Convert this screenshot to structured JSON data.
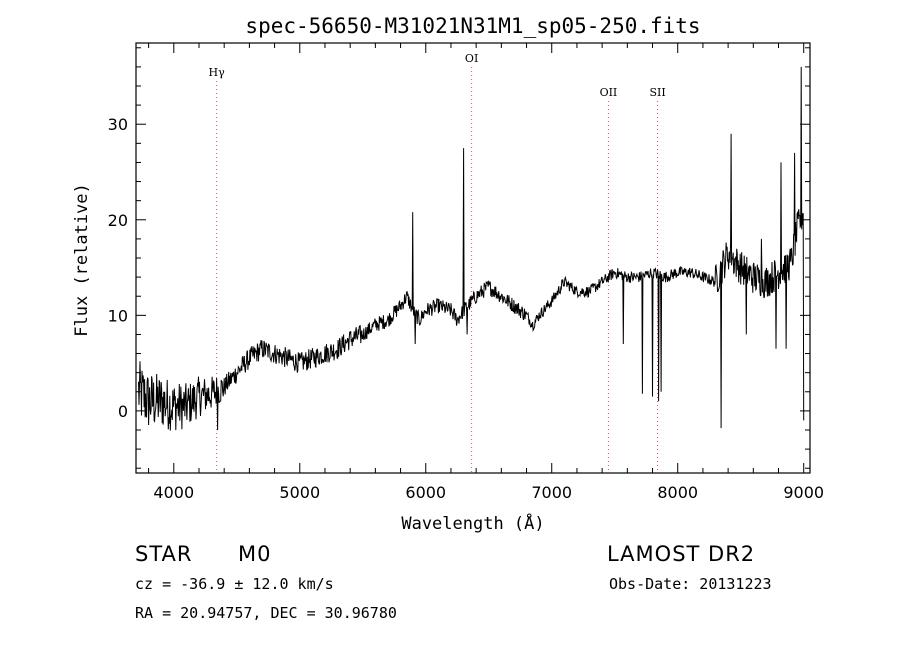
{
  "chart_data": {
    "type": "line",
    "title": "spec-56650-M31021N31M1_sp05-250.fits",
    "xlabel": "Wavelength (Å)",
    "ylabel": "Flux (relative)",
    "xlim": [
      3700,
      9050
    ],
    "ylim": [
      -6.5,
      38.5
    ],
    "xticks": [
      4000,
      5000,
      6000,
      7000,
      8000,
      9000
    ],
    "yticks": [
      0,
      10,
      20,
      30
    ],
    "grid": false,
    "spectral_lines": [
      {
        "name": "Hγ",
        "wavelength": 4340
      },
      {
        "name": "OI",
        "wavelength": 6364
      },
      {
        "name": "OII",
        "wavelength": 7450
      },
      {
        "name": "SII",
        "wavelength": 7840
      }
    ],
    "series": [
      {
        "color": "#000000",
        "anchors": [
          [
            3720,
            2.0
          ],
          [
            3800,
            1.0
          ],
          [
            3900,
            1.0
          ],
          [
            4000,
            0.5
          ],
          [
            4100,
            0.5
          ],
          [
            4200,
            1.5
          ],
          [
            4300,
            1.8
          ],
          [
            4400,
            2.5
          ],
          [
            4500,
            4.0
          ],
          [
            4600,
            5.5
          ],
          [
            4700,
            6.5
          ],
          [
            4800,
            6.0
          ],
          [
            4900,
            5.5
          ],
          [
            5000,
            5.0
          ],
          [
            5100,
            5.5
          ],
          [
            5200,
            6.0
          ],
          [
            5300,
            6.5
          ],
          [
            5400,
            7.5
          ],
          [
            5500,
            8.0
          ],
          [
            5600,
            9.0
          ],
          [
            5700,
            9.5
          ],
          [
            5800,
            11.0
          ],
          [
            5850,
            12.0
          ],
          [
            5900,
            10.5
          ],
          [
            5950,
            9.5
          ],
          [
            6000,
            10.5
          ],
          [
            6100,
            11.0
          ],
          [
            6200,
            10.5
          ],
          [
            6250,
            9.5
          ],
          [
            6300,
            10.5
          ],
          [
            6400,
            12.0
          ],
          [
            6500,
            13.0
          ],
          [
            6600,
            12.0
          ],
          [
            6700,
            11.0
          ],
          [
            6800,
            10.0
          ],
          [
            6850,
            9.0
          ],
          [
            6900,
            10.0
          ],
          [
            7000,
            11.5
          ],
          [
            7100,
            13.5
          ],
          [
            7200,
            12.5
          ],
          [
            7300,
            12.5
          ],
          [
            7400,
            13.5
          ],
          [
            7450,
            14.0
          ],
          [
            7500,
            14.5
          ],
          [
            7600,
            14.0
          ],
          [
            7700,
            14.0
          ],
          [
            7800,
            14.5
          ],
          [
            7900,
            14.0
          ],
          [
            8000,
            14.5
          ],
          [
            8100,
            14.5
          ],
          [
            8200,
            14.0
          ],
          [
            8300,
            13.5
          ],
          [
            8400,
            16.5
          ],
          [
            8500,
            15.0
          ],
          [
            8600,
            14.0
          ],
          [
            8700,
            13.5
          ],
          [
            8800,
            14.5
          ],
          [
            8900,
            15.5
          ],
          [
            8950,
            19.0
          ],
          [
            9000,
            21.0
          ]
        ],
        "features": [
          [
            4348,
            -2.0
          ],
          [
            5895,
            20.8
          ],
          [
            5915,
            7.0
          ],
          [
            6300,
            27.5
          ],
          [
            6330,
            8.0
          ],
          [
            7570,
            7.0
          ],
          [
            7720,
            1.8
          ],
          [
            7800,
            1.5
          ],
          [
            7850,
            1.0
          ],
          [
            7870,
            2.0
          ],
          [
            8345,
            -1.8
          ],
          [
            8425,
            29.0
          ],
          [
            8545,
            8.0
          ],
          [
            8665,
            18.0
          ],
          [
            8780,
            6.5
          ],
          [
            8820,
            26.0
          ],
          [
            8860,
            6.5
          ],
          [
            8930,
            27.0
          ],
          [
            8980,
            36.0
          ],
          [
            9000,
            -1.0
          ]
        ]
      }
    ]
  },
  "info": {
    "object_class": "STAR",
    "subclass": "M0",
    "survey": "LAMOST DR2",
    "cz": "cz = -36.9 ± 12.0 km/s",
    "obs_date": "Obs-Date: 20131223",
    "coords": "RA =  20.94757, DEC =  30.96780"
  }
}
